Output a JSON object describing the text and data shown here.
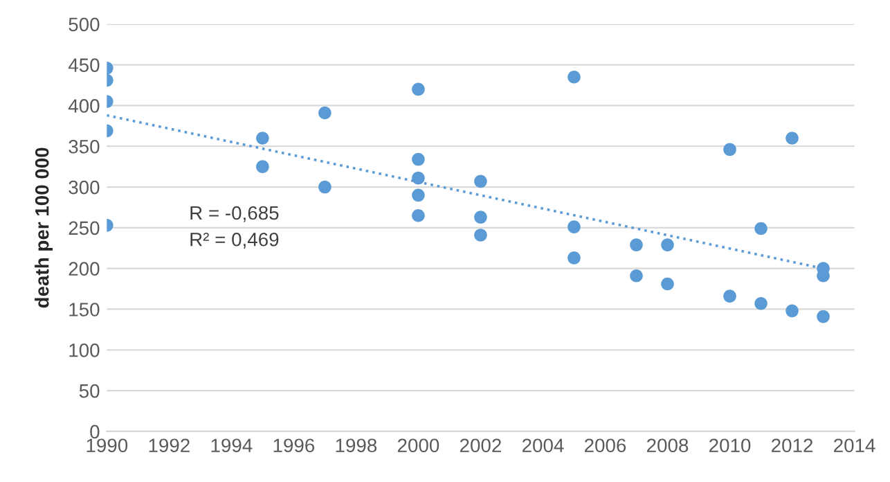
{
  "chart_data": {
    "type": "scatter",
    "ylabel": "death per 100 000",
    "xlim": [
      1990,
      2014
    ],
    "xticks": [
      1990,
      1992,
      1994,
      1996,
      1998,
      2000,
      2002,
      2004,
      2006,
      2008,
      2010,
      2012,
      2014
    ],
    "ylim": [
      0,
      500
    ],
    "yticks": [
      0,
      50,
      100,
      150,
      200,
      250,
      300,
      350,
      400,
      450,
      500
    ],
    "grid": "y",
    "legend": false,
    "annotations": [
      "R = -0,685",
      "R² = 0,469"
    ],
    "series": [
      {
        "color": "#5b9bd5",
        "marker": "circle",
        "x": [
          1990,
          1990,
          1990,
          1990,
          1990,
          1995,
          1995,
          1997,
          1997,
          2000,
          2000,
          2000,
          2000,
          2000,
          2002,
          2002,
          2002,
          2005,
          2005,
          2005,
          2007,
          2007,
          2008,
          2008,
          2010,
          2010,
          2011,
          2011,
          2012,
          2012,
          2013,
          2013,
          2013
        ],
        "values": [
          446,
          431,
          405,
          369,
          253,
          360,
          325,
          391,
          300,
          420,
          334,
          311,
          290,
          265,
          307,
          263,
          241,
          435,
          251,
          213,
          229,
          191,
          229,
          181,
          346,
          166,
          249,
          157,
          360,
          148,
          200,
          191,
          141
        ]
      },
      {
        "type": "line",
        "color": "#5b9bd5",
        "marker": "none",
        "line_style": "dotted",
        "x": [
          1990,
          2013
        ],
        "values": [
          388,
          200
        ]
      }
    ]
  }
}
